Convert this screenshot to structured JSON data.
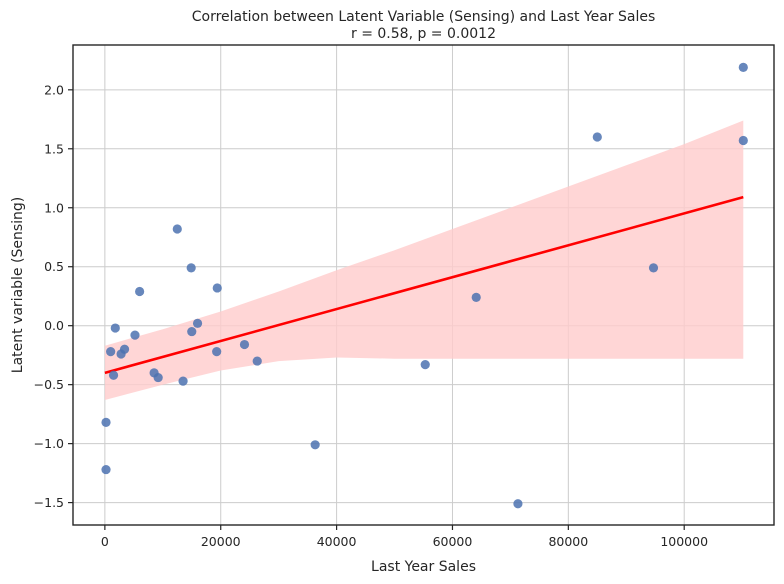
{
  "chart_data": {
    "type": "scatter",
    "title": "Correlation between Latent Variable (Sensing) and Last Year Sales",
    "subtitle": "r = 0.58, p = 0.0012",
    "xlabel": "Last Year Sales",
    "ylabel": "Latent variable (Sensing)",
    "xlim": [
      -5500,
      115500
    ],
    "ylim": [
      -1.69,
      2.38
    ],
    "xticks": [
      0,
      20000,
      40000,
      60000,
      80000,
      100000
    ],
    "xtick_labels": [
      "0",
      "20000",
      "40000",
      "60000",
      "80000",
      "100000"
    ],
    "yticks": [
      -1.5,
      -1.0,
      -0.5,
      0.0,
      0.5,
      1.0,
      1.5,
      2.0
    ],
    "ytick_labels": [
      "−1.5",
      "−1.0",
      "−0.5",
      "0.0",
      "0.5",
      "1.0",
      "1.5",
      "2.0"
    ],
    "grid": true,
    "points": [
      {
        "x": 200,
        "y": -0.82
      },
      {
        "x": 200,
        "y": -1.22
      },
      {
        "x": 1000,
        "y": -0.22
      },
      {
        "x": 1500,
        "y": -0.42
      },
      {
        "x": 1800,
        "y": -0.02
      },
      {
        "x": 2800,
        "y": -0.24
      },
      {
        "x": 3400,
        "y": -0.2
      },
      {
        "x": 5200,
        "y": -0.08
      },
      {
        "x": 6000,
        "y": 0.29
      },
      {
        "x": 8500,
        "y": -0.4
      },
      {
        "x": 9200,
        "y": -0.44
      },
      {
        "x": 12500,
        "y": 0.82
      },
      {
        "x": 13500,
        "y": -0.47
      },
      {
        "x": 14900,
        "y": 0.49
      },
      {
        "x": 15000,
        "y": -0.05
      },
      {
        "x": 16000,
        "y": 0.02
      },
      {
        "x": 19300,
        "y": -0.22
      },
      {
        "x": 19400,
        "y": 0.32
      },
      {
        "x": 24100,
        "y": -0.16
      },
      {
        "x": 26300,
        "y": -0.3
      },
      {
        "x": 36300,
        "y": -1.01
      },
      {
        "x": 55300,
        "y": -0.33
      },
      {
        "x": 64100,
        "y": 0.24
      },
      {
        "x": 71300,
        "y": -1.51
      },
      {
        "x": 85000,
        "y": 1.6
      },
      {
        "x": 94700,
        "y": 0.49
      },
      {
        "x": 110200,
        "y": 2.19
      },
      {
        "x": 110200,
        "y": 1.57
      }
    ],
    "regression_line": {
      "x": [
        0,
        110200
      ],
      "y": [
        -0.4,
        1.09
      ]
    },
    "confidence_band": {
      "x": [
        0,
        10000,
        20000,
        30000,
        40000,
        50000,
        60000,
        70000,
        80000,
        90000,
        100000,
        110200
      ],
      "upper": [
        -0.17,
        -0.03,
        0.12,
        0.29,
        0.47,
        0.64,
        0.82,
        1.0,
        1.18,
        1.36,
        1.54,
        1.74
      ],
      "lower": [
        -0.63,
        -0.5,
        -0.38,
        -0.3,
        -0.27,
        -0.28,
        -0.28,
        -0.28,
        -0.28,
        -0.28,
        -0.28,
        -0.28
      ]
    },
    "colors": {
      "points": "#4c72b0",
      "regression_line": "#ff0000",
      "confidence_band": "#ffcccc"
    }
  }
}
